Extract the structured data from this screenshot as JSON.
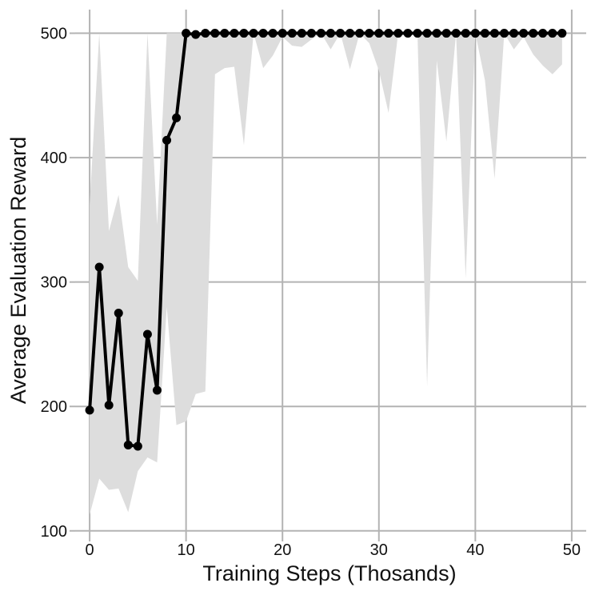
{
  "chart_data": {
    "type": "line",
    "title": "",
    "xlabel": "Training Steps (Thosands)",
    "ylabel": "Average Evaluation Reward",
    "xlim": [
      -1.5,
      51.5
    ],
    "ylim": [
      96,
      519
    ],
    "xticks": [
      0,
      10,
      20,
      30,
      40,
      50
    ],
    "yticks": [
      100,
      200,
      300,
      400,
      500
    ],
    "xtick_labels": [
      "0",
      "10",
      "20",
      "30",
      "40",
      "50"
    ],
    "ytick_labels": [
      "100",
      "200",
      "300",
      "400",
      "500"
    ],
    "grid": true,
    "legend": "none",
    "colors": {
      "line": "#000000",
      "band": "#dddddd",
      "grid": "#b3b3b3",
      "axis_text": "#111111"
    },
    "series": [
      {
        "x": [
          0,
          1,
          2,
          3,
          4,
          5,
          6,
          7,
          8,
          9,
          10,
          11,
          12,
          13,
          14,
          15,
          16,
          17,
          18,
          19,
          20,
          21,
          22,
          23,
          24,
          25,
          26,
          27,
          28,
          29,
          30,
          31,
          32,
          33,
          34,
          35,
          36,
          37,
          38,
          39,
          40,
          41,
          42,
          43,
          44,
          45,
          46,
          47,
          48,
          49
        ],
        "y": [
          197,
          312,
          201,
          275,
          169,
          168,
          258,
          213,
          414,
          432,
          500,
          499,
          500,
          500,
          500,
          500,
          500,
          500,
          500,
          500,
          500,
          500,
          500,
          500,
          500,
          500,
          500,
          500,
          500,
          500,
          500,
          500,
          500,
          500,
          500,
          500,
          500,
          500,
          500,
          500,
          500,
          500,
          500,
          500,
          500,
          500,
          500,
          500,
          500,
          500
        ],
        "band_lower": [
          113,
          142,
          133,
          134,
          115,
          148,
          159,
          155,
          280,
          185,
          188,
          210,
          212,
          467,
          472,
          473,
          410,
          500,
          472,
          482,
          497,
          490,
          489,
          495,
          500,
          487,
          500,
          471,
          500,
          492,
          470,
          436,
          500,
          500,
          500,
          216,
          478,
          413,
          500,
          303,
          500,
          462,
          383,
          500,
          487,
          497,
          483,
          474,
          467,
          475
        ],
        "band_upper": [
          362,
          500,
          341,
          370,
          312,
          301,
          500,
          346,
          500,
          500,
          500,
          500,
          500,
          500,
          500,
          500,
          500,
          500,
          500,
          500,
          500,
          500,
          500,
          500,
          500,
          500,
          500,
          500,
          500,
          500,
          500,
          500,
          500,
          500,
          500,
          500,
          500,
          500,
          500,
          500,
          500,
          500,
          500,
          500,
          500,
          500,
          500,
          500,
          500,
          500
        ]
      }
    ]
  }
}
